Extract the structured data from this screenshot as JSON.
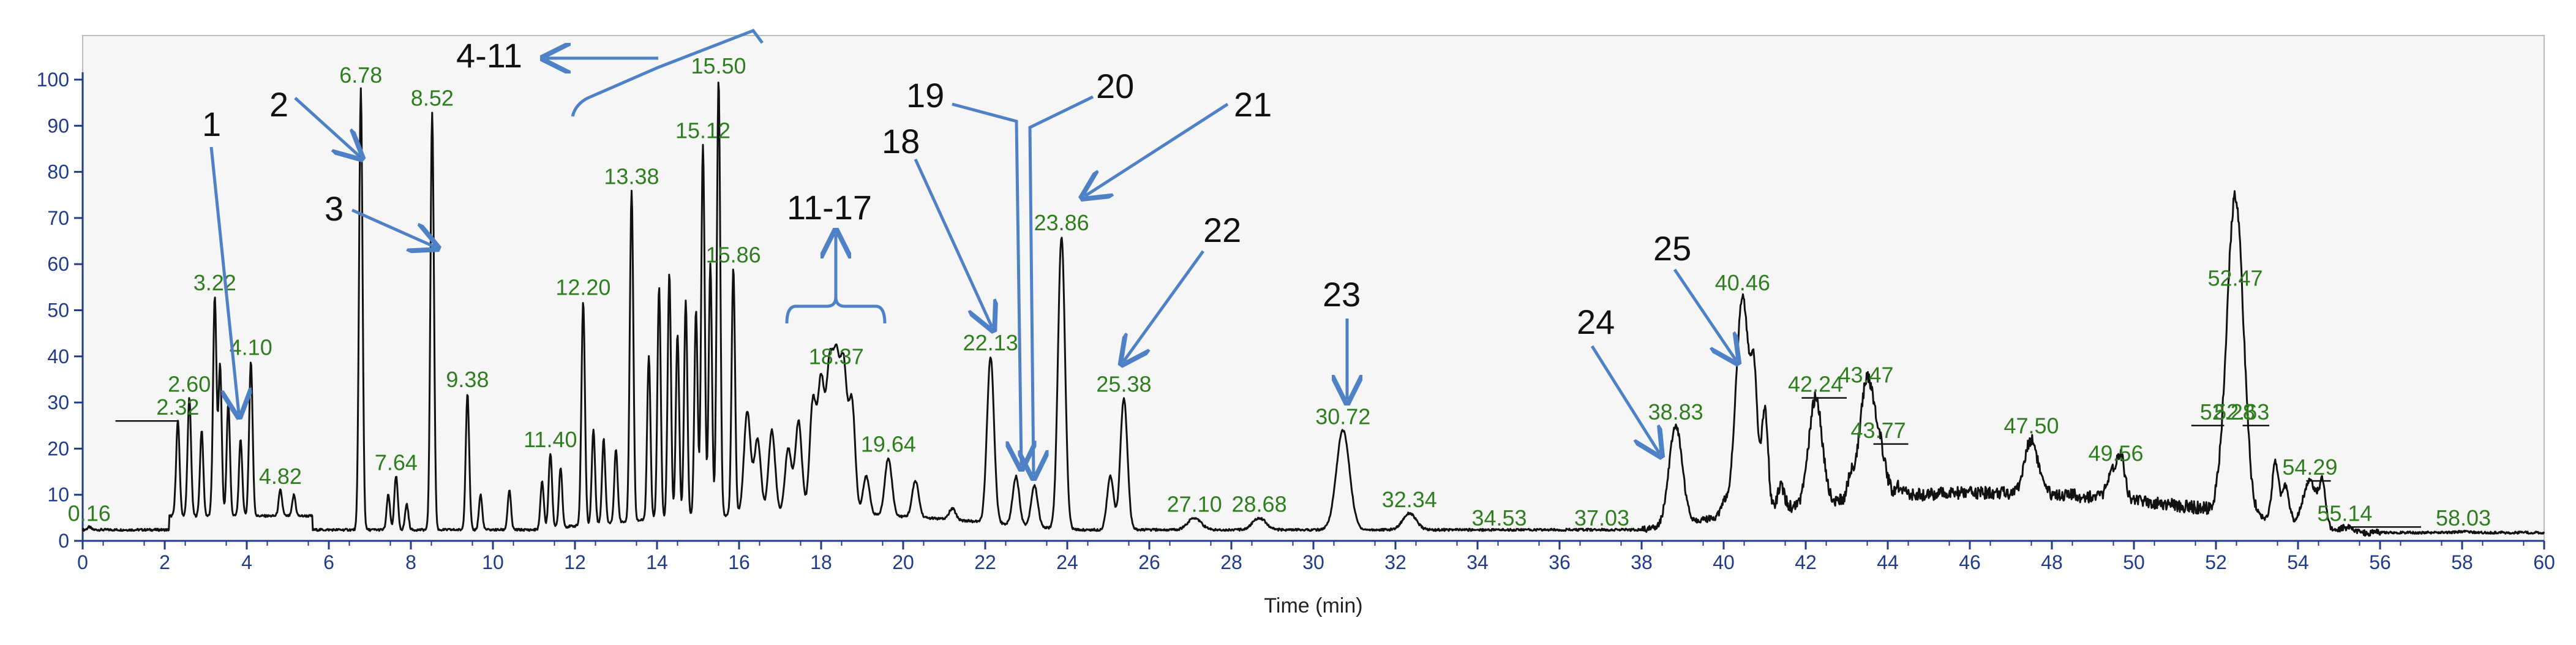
{
  "chart_data": {
    "type": "line",
    "xlabel": "Time (min)",
    "ylabel": "",
    "xlim": [
      0,
      60
    ],
    "ylim": [
      0,
      100
    ],
    "x_ticks": [
      0,
      2,
      4,
      6,
      8,
      10,
      12,
      14,
      16,
      18,
      20,
      22,
      24,
      26,
      28,
      30,
      32,
      34,
      36,
      38,
      40,
      42,
      44,
      46,
      48,
      50,
      52,
      54,
      56,
      58,
      60
    ],
    "y_ticks": [
      0,
      10,
      20,
      30,
      40,
      50,
      60,
      70,
      80,
      90,
      100
    ],
    "grid": false,
    "colors": {
      "trace": "#111111",
      "peak_label": "#2e7d1e",
      "axis": "#203a8c",
      "annotation": "#4f81c7",
      "plot_bg": "#f6f6f6"
    },
    "peaks": [
      {
        "x": 0.16,
        "y": 3,
        "label": "0.16"
      },
      {
        "x": 2.32,
        "y": 26,
        "label": "2.32"
      },
      {
        "x": 2.6,
        "y": 31,
        "label": "2.60"
      },
      {
        "x": 3.22,
        "y": 53,
        "label": "3.22"
      },
      {
        "x": 4.1,
        "y": 39,
        "label": "4.10"
      },
      {
        "x": 4.82,
        "y": 11,
        "label": "4.82"
      },
      {
        "x": 6.78,
        "y": 98,
        "label": "6.78"
      },
      {
        "x": 7.64,
        "y": 14,
        "label": "7.64"
      },
      {
        "x": 8.52,
        "y": 93,
        "label": "8.52"
      },
      {
        "x": 9.38,
        "y": 32,
        "label": "9.38"
      },
      {
        "x": 11.4,
        "y": 19,
        "label": "11.40"
      },
      {
        "x": 12.2,
        "y": 52,
        "label": "12.20"
      },
      {
        "x": 13.38,
        "y": 76,
        "label": "13.38"
      },
      {
        "x": 15.12,
        "y": 86,
        "label": "15.12"
      },
      {
        "x": 15.5,
        "y": 100,
        "label": "15.50"
      },
      {
        "x": 15.86,
        "y": 59,
        "label": "15.86"
      },
      {
        "x": 18.37,
        "y": 37,
        "label": "18.37"
      },
      {
        "x": 19.64,
        "y": 18,
        "label": "19.64"
      },
      {
        "x": 22.13,
        "y": 40,
        "label": "22.13"
      },
      {
        "x": 23.86,
        "y": 66,
        "label": "23.86"
      },
      {
        "x": 25.38,
        "y": 31,
        "label": "25.38"
      },
      {
        "x": 27.1,
        "y": 5,
        "label": "27.10"
      },
      {
        "x": 28.68,
        "y": 5,
        "label": "28.68"
      },
      {
        "x": 30.72,
        "y": 24,
        "label": "30.72"
      },
      {
        "x": 32.34,
        "y": 6,
        "label": "32.34"
      },
      {
        "x": 34.53,
        "y": 2,
        "label": "34.53"
      },
      {
        "x": 37.03,
        "y": 2,
        "label": "37.03"
      },
      {
        "x": 38.83,
        "y": 25,
        "label": "38.83"
      },
      {
        "x": 40.46,
        "y": 53,
        "label": "40.46"
      },
      {
        "x": 42.24,
        "y": 31,
        "label": "42.24"
      },
      {
        "x": 43.47,
        "y": 33,
        "label": "43.47"
      },
      {
        "x": 43.77,
        "y": 21,
        "label": "43.77"
      },
      {
        "x": 47.5,
        "y": 22,
        "label": "47.50"
      },
      {
        "x": 49.56,
        "y": 16,
        "label": "49.56"
      },
      {
        "x": 52.28,
        "y": 25,
        "label": "52.28"
      },
      {
        "x": 52.47,
        "y": 54,
        "label": "52.47"
      },
      {
        "x": 52.63,
        "y": 25,
        "label": "52.63"
      },
      {
        "x": 54.29,
        "y": 13,
        "label": "54.29"
      },
      {
        "x": 55.14,
        "y": 3,
        "label": "55.14"
      },
      {
        "x": 58.03,
        "y": 2,
        "label": "58.03"
      }
    ],
    "shoulders": [
      [
        2.9,
        24
      ],
      [
        3.35,
        38
      ],
      [
        3.55,
        30
      ],
      [
        3.85,
        22
      ],
      [
        5.15,
        10
      ],
      [
        7.45,
        10
      ],
      [
        7.9,
        8
      ],
      [
        9.7,
        10
      ],
      [
        10.4,
        11
      ],
      [
        11.2,
        13
      ],
      [
        11.65,
        16
      ],
      [
        12.45,
        24
      ],
      [
        12.7,
        22
      ],
      [
        13.0,
        20
      ],
      [
        13.8,
        40
      ],
      [
        14.05,
        55
      ],
      [
        14.3,
        58
      ],
      [
        14.5,
        45
      ],
      [
        14.7,
        52
      ],
      [
        14.95,
        50
      ],
      [
        15.3,
        60
      ],
      [
        16.2,
        28
      ],
      [
        16.45,
        22
      ],
      [
        16.8,
        24
      ],
      [
        17.2,
        20
      ],
      [
        17.45,
        26
      ],
      [
        17.8,
        30
      ],
      [
        18.0,
        34
      ],
      [
        18.2,
        35
      ],
      [
        18.55,
        36
      ],
      [
        18.75,
        30
      ],
      [
        19.1,
        14
      ],
      [
        20.3,
        13
      ],
      [
        21.2,
        7
      ],
      [
        22.75,
        14
      ],
      [
        23.2,
        12
      ],
      [
        25.05,
        14
      ],
      [
        40.0,
        8
      ],
      [
        40.75,
        30
      ],
      [
        41.0,
        28
      ],
      [
        41.4,
        12
      ],
      [
        43.1,
        14
      ],
      [
        44.3,
        12
      ],
      [
        45.4,
        10
      ],
      [
        49.7,
        14
      ],
      [
        53.45,
        17
      ],
      [
        53.7,
        12
      ],
      [
        54.6,
        12
      ]
    ],
    "annotations": [
      {
        "text": "1",
        "arrow_to": [
          3.9,
          25
        ]
      },
      {
        "text": "2",
        "arrow_to": [
          6.78,
          82
        ]
      },
      {
        "text": "3",
        "arrow_to": [
          8.52,
          63
        ]
      },
      {
        "text": "4-11",
        "arrow_to": [
          11.2,
          103
        ]
      },
      {
        "text": "11-17",
        "arrow_to": [
          18.3,
          66
        ]
      },
      {
        "text": "18",
        "arrow_to": [
          22.13,
          45
        ]
      },
      {
        "text": "19",
        "arrow_to": [
          22.85,
          15
        ]
      },
      {
        "text": "20",
        "arrow_to": [
          23.25,
          13
        ]
      },
      {
        "text": "21",
        "arrow_to": [
          24.35,
          74
        ]
      },
      {
        "text": "22",
        "arrow_to": [
          25.38,
          37
        ]
      },
      {
        "text": "23",
        "arrow_to": [
          30.72,
          28
        ]
      },
      {
        "text": "24",
        "arrow_to": [
          38.4,
          19
        ]
      },
      {
        "text": "25",
        "arrow_to": [
          40.28,
          34
        ]
      }
    ]
  }
}
